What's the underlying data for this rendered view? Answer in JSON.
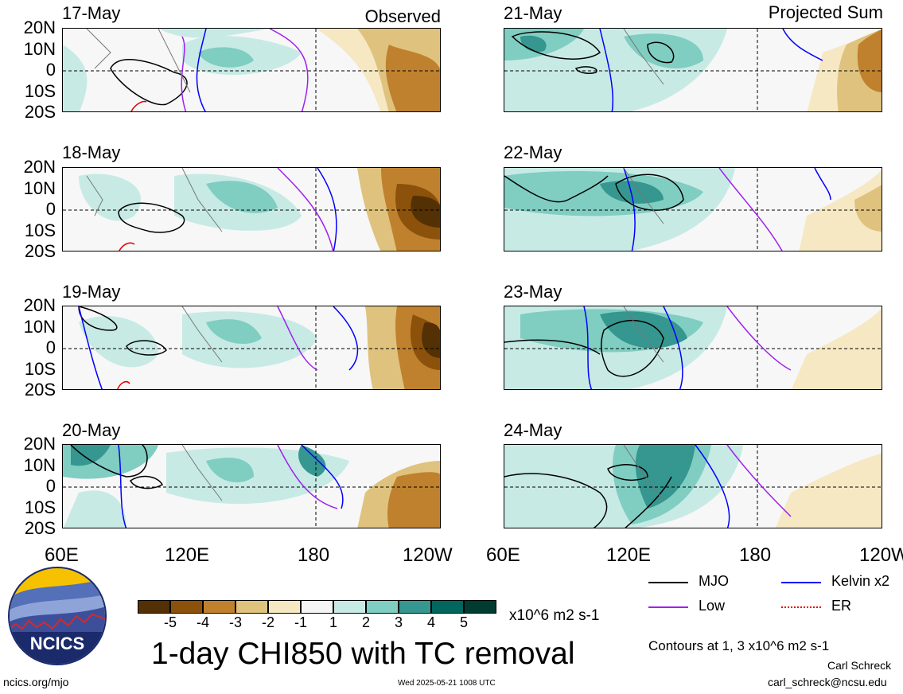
{
  "header": {
    "left_label": "Observed",
    "right_label": "Projected Sum"
  },
  "latitude_labels": [
    "20N",
    "10N",
    "0",
    "10S",
    "20S"
  ],
  "longitude_labels": [
    "60E",
    "120E",
    "180",
    "120W"
  ],
  "panels_left": [
    {
      "date": "17-May"
    },
    {
      "date": "18-May"
    },
    {
      "date": "19-May"
    },
    {
      "date": "20-May"
    }
  ],
  "panels_right": [
    {
      "date": "21-May"
    },
    {
      "date": "22-May"
    },
    {
      "date": "23-May"
    },
    {
      "date": "24-May"
    }
  ],
  "colorbar": {
    "labels": [
      "-5",
      "-4",
      "-3",
      "-2",
      "-1",
      "1",
      "2",
      "3",
      "4",
      "5"
    ],
    "colors": [
      "#543005",
      "#8c510a",
      "#bf812d",
      "#dfc27d",
      "#f6e8c3",
      "#f5f5f5",
      "#c7eae5",
      "#80cdc1",
      "#35978f",
      "#01665e",
      "#003c30"
    ],
    "units": "x10^6 m2 s-1"
  },
  "title": "1-day CHI850 with TC removal",
  "legend": {
    "items": [
      {
        "label": "MJO",
        "color": "#000000"
      },
      {
        "label": "Kelvin x2",
        "color": "#0000ff"
      },
      {
        "label": "Low",
        "color": "#a020f0"
      },
      {
        "label": "ER",
        "color": "#e00000"
      }
    ],
    "contours_note": "Contours at 1, 3 x10^6 m2 s-1"
  },
  "logo": {
    "text": "NCICS"
  },
  "footer": {
    "url": "ncics.org/mjo",
    "timestamp": "Wed 2025-05-21 1008 UTC",
    "author": "Carl Schreck",
    "email": "carl_schreck@ncsu.edu"
  }
}
